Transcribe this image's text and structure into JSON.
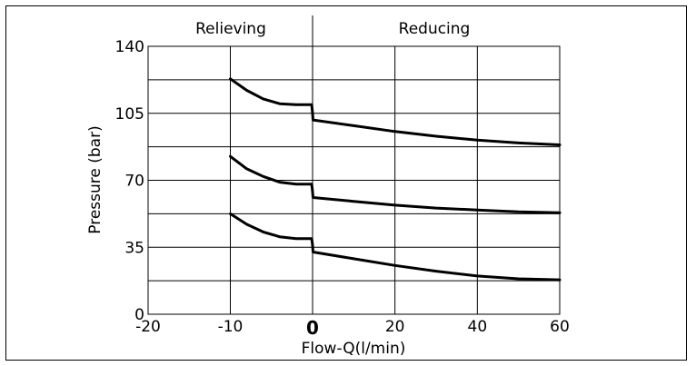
{
  "chart_data": {
    "type": "line",
    "xlabel": "Flow-Q(l/min)",
    "ylabel": "Pressure (bar)",
    "xlim": [
      -20,
      60
    ],
    "ylim": [
      0,
      140
    ],
    "x_ticks": [
      "-20",
      "-10",
      "0",
      "20",
      "40",
      "60"
    ],
    "y_ticks": [
      "0",
      "35",
      "70",
      "105",
      "140"
    ],
    "grid": true,
    "regions": [
      {
        "label": "Relieving",
        "x_range": [
          -20,
          0
        ]
      },
      {
        "label": "Reducing",
        "x_range": [
          0,
          60
        ]
      }
    ],
    "series": [
      {
        "x": [
          -10,
          -8,
          -6,
          -4,
          -2,
          -0.1,
          0,
          0.1,
          10,
          20,
          30,
          40,
          50,
          60
        ],
        "y": [
          123,
          117,
          112.5,
          110,
          109.5,
          109.5,
          105,
          101.5,
          98.5,
          95.5,
          93,
          91,
          89.5,
          88.5
        ]
      },
      {
        "x": [
          -10,
          -8,
          -6,
          -4,
          -2,
          -0.1,
          0,
          0.1,
          10,
          20,
          30,
          40,
          50,
          60
        ],
        "y": [
          82.5,
          76,
          72,
          69,
          68,
          68,
          64,
          61,
          59,
          57,
          55.5,
          54.5,
          53.5,
          53
        ]
      },
      {
        "x": [
          -10,
          -8,
          -6,
          -4,
          -2,
          -0.1,
          0,
          0.1,
          10,
          20,
          30,
          40,
          50,
          60
        ],
        "y": [
          52.5,
          47,
          43,
          40.5,
          39.5,
          39.5,
          36,
          32.5,
          29,
          25.5,
          22.5,
          20,
          18.5,
          18
        ]
      }
    ]
  }
}
